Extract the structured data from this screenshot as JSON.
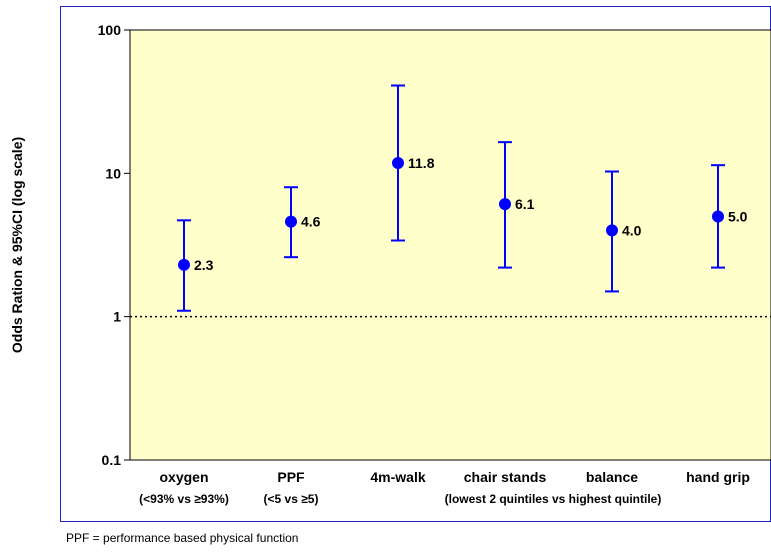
{
  "chart_data": {
    "type": "scatter",
    "ylabel": "Odds Ration & 95%CI (log scale)",
    "yscale": "log",
    "ylim": [
      0.1,
      100
    ],
    "yticks": [
      "0.1",
      "1",
      "10",
      "100"
    ],
    "reference_line": 1,
    "colors": {
      "marker": "#0000ff",
      "plot_bg": "#ffffcc",
      "frame": "#2323c8"
    },
    "categories": [
      "oxygen",
      "PPF",
      "4m-walk",
      "chair stands",
      "balance",
      "hand grip"
    ],
    "points": [
      {
        "category": "oxygen",
        "value": 2.3,
        "label": "2.3",
        "ci_low": 1.1,
        "ci_high": 4.7
      },
      {
        "category": "PPF",
        "value": 4.6,
        "label": "4.6",
        "ci_low": 2.6,
        "ci_high": 8.0
      },
      {
        "category": "4m-walk",
        "value": 11.8,
        "label": "11.8",
        "ci_low": 3.4,
        "ci_high": 41
      },
      {
        "category": "chair stands",
        "value": 6.1,
        "label": "6.1",
        "ci_low": 2.2,
        "ci_high": 16.5
      },
      {
        "category": "balance",
        "value": 4.0,
        "label": "4.0",
        "ci_low": 1.5,
        "ci_high": 10.3
      },
      {
        "category": "hand grip",
        "value": 5.0,
        "label": "5.0",
        "ci_low": 2.2,
        "ci_high": 11.4
      }
    ],
    "sublabels": [
      "(<93%  vs ≥93%)",
      "(<5 vs ≥5)",
      "(lowest 2 quintiles vs highest quintile)"
    ]
  },
  "footnote": "PPF = performance based physical function"
}
